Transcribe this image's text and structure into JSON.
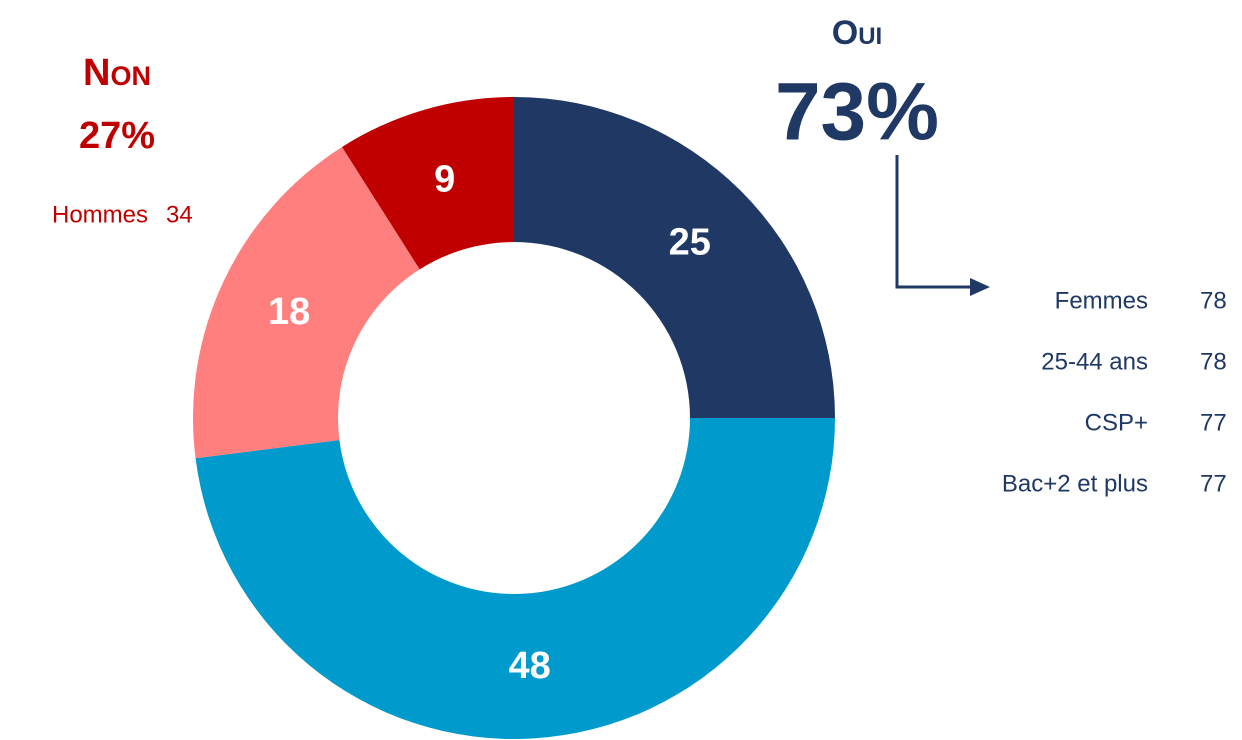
{
  "chart_data": {
    "type": "donut",
    "values": [
      25,
      48,
      18,
      9
    ],
    "colors": [
      "#1f3864",
      "#009bcc",
      "#ff7f7f",
      "#c00000"
    ],
    "groups": [
      {
        "name": "Oui",
        "value": 73,
        "value_label": "73%",
        "color": "#1f3864",
        "breakdown": [
          {
            "label": "Femmes",
            "value": 78
          },
          {
            "label": "25-44 ans",
            "value": 78
          },
          {
            "label": "CSP+",
            "value": 77
          },
          {
            "label": "Bac+2 et plus",
            "value": 77
          }
        ]
      },
      {
        "name": "Non",
        "value": 27,
        "value_label": "27%",
        "color": "#c00000",
        "breakdown": [
          {
            "label": "Hommes",
            "value": 34
          }
        ]
      }
    ]
  }
}
